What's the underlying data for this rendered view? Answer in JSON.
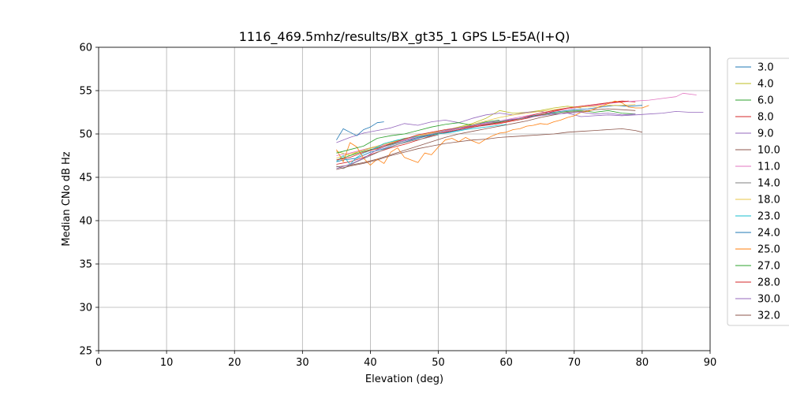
{
  "chart_data": {
    "type": "line",
    "title": "1116_469.5mhz/results/BX_gt35_1 GPS L5-E5A(I+Q)",
    "xlabel": "Elevation (deg)",
    "ylabel": "Median CNo dB Hz",
    "xlim": [
      0,
      90
    ],
    "ylim": [
      25,
      60
    ],
    "xticks": [
      0,
      10,
      20,
      30,
      40,
      50,
      60,
      70,
      80,
      90
    ],
    "yticks": [
      25,
      30,
      35,
      40,
      45,
      50,
      55,
      60
    ],
    "grid": true,
    "legend_position": "right",
    "series": [
      {
        "name": "3.0",
        "color": "#1f77b4",
        "x": [
          35,
          36,
          38,
          40,
          42,
          44,
          46,
          48,
          50,
          52,
          54,
          56,
          58,
          60,
          62,
          64,
          66,
          68,
          70,
          72,
          74,
          76,
          78,
          80
        ],
        "y": [
          46.8,
          47.0,
          47.2,
          47.9,
          48.3,
          48.8,
          49.3,
          49.7,
          50.0,
          50.3,
          50.6,
          50.9,
          51.2,
          51.5,
          51.8,
          52.1,
          52.4,
          52.6,
          52.8,
          52.9,
          53.1,
          53.3,
          53.2,
          53.3
        ]
      },
      {
        "name": "4.0",
        "color": "#bcbd22",
        "x": [
          35,
          37,
          39,
          41,
          43,
          45,
          47,
          49,
          51,
          53,
          55,
          57,
          59,
          61,
          63,
          65,
          67,
          69,
          71
        ],
        "y": [
          48.0,
          47.5,
          48.2,
          48.6,
          49.0,
          49.5,
          49.7,
          50.1,
          50.4,
          50.8,
          51.2,
          51.8,
          52.7,
          52.4,
          52.5,
          52.7,
          53.0,
          53.2,
          53.0
        ]
      },
      {
        "name": "6.0",
        "color": "#2ca02c",
        "x": [
          35,
          37,
          39,
          41,
          43,
          45,
          47,
          49,
          51,
          53,
          55,
          57,
          59,
          61,
          63,
          65,
          67,
          69,
          71,
          73,
          75,
          77,
          79
        ],
        "y": [
          47.0,
          47.5,
          48.0,
          48.4,
          48.8,
          49.2,
          49.6,
          49.9,
          50.3,
          50.6,
          50.9,
          51.2,
          51.4,
          51.6,
          51.9,
          52.2,
          52.4,
          52.6,
          52.7,
          52.5,
          52.7,
          52.4,
          52.3
        ]
      },
      {
        "name": "8.0",
        "color": "#d62728",
        "x": [
          35,
          37,
          39,
          41,
          43,
          45,
          47,
          49,
          51,
          53,
          55,
          57,
          59,
          61,
          63,
          65,
          67,
          69,
          71,
          73,
          75,
          77,
          79
        ],
        "y": [
          46.5,
          46.8,
          47.3,
          47.9,
          48.4,
          48.8,
          49.3,
          49.8,
          50.2,
          50.5,
          50.8,
          51.0,
          51.2,
          51.5,
          51.8,
          52.2,
          52.6,
          52.9,
          53.1,
          53.3,
          53.6,
          53.8,
          53.7
        ]
      },
      {
        "name": "9.0",
        "color": "#9467bd",
        "x": [
          35,
          37,
          39,
          41,
          43,
          45,
          47,
          49,
          51,
          53,
          55,
          57,
          59,
          61,
          63,
          65,
          67,
          69,
          71,
          73,
          75,
          77,
          79,
          81,
          83,
          85,
          87,
          89
        ],
        "y": [
          49.0,
          49.6,
          50.1,
          50.4,
          50.7,
          51.2,
          51.0,
          51.4,
          51.6,
          51.3,
          51.8,
          52.2,
          52.4,
          52.2,
          52.5,
          52.6,
          52.3,
          52.4,
          52.0,
          52.1,
          52.2,
          52.1,
          52.2,
          52.3,
          52.4,
          52.6,
          52.5,
          52.5
        ]
      },
      {
        "name": "10.0",
        "color": "#8c564b",
        "x": [
          35,
          37,
          39,
          41,
          43,
          45,
          47,
          49,
          51,
          53,
          55,
          57,
          59,
          61,
          63,
          65,
          67,
          69,
          71,
          73,
          75,
          77,
          79
        ],
        "y": [
          46.2,
          46.4,
          46.7,
          47.1,
          47.6,
          48.1,
          48.6,
          49.1,
          49.6,
          50.0,
          50.3,
          50.6,
          50.9,
          51.2,
          51.5,
          51.9,
          52.2,
          52.5,
          52.6,
          52.8,
          52.9,
          52.8,
          52.7
        ]
      },
      {
        "name": "11.0",
        "color": "#e377c2",
        "x": [
          35,
          37,
          39,
          41,
          43,
          45,
          47,
          49,
          51,
          53,
          55,
          57,
          59,
          61,
          63,
          65,
          67,
          69,
          71,
          73,
          75,
          77,
          79,
          81,
          83,
          85,
          86,
          88
        ],
        "y": [
          47.5,
          47.8,
          48.2,
          48.5,
          48.9,
          49.3,
          49.7,
          50.0,
          50.3,
          50.6,
          50.9,
          51.2,
          51.5,
          51.8,
          52.1,
          52.4,
          52.7,
          52.9,
          53.1,
          53.3,
          53.5,
          53.7,
          53.8,
          53.9,
          54.1,
          54.3,
          54.7,
          54.5
        ]
      },
      {
        "name": "14.0",
        "color": "#7f7f7f",
        "x": [
          35,
          36,
          38,
          40,
          42,
          44,
          46,
          48,
          50
        ],
        "y": [
          46.3,
          46.0,
          46.8,
          47.5,
          48.2,
          48.8,
          49.2,
          49.5,
          49.9
        ]
      },
      {
        "name": "18.0",
        "color": "#e8c547",
        "x": [
          35,
          37,
          39,
          41,
          43,
          45,
          47,
          49,
          51,
          53,
          55,
          57,
          59,
          61,
          63,
          65,
          67,
          69,
          71,
          73,
          75,
          77,
          79
        ],
        "y": [
          47.2,
          47.7,
          48.1,
          48.6,
          49.0,
          49.4,
          49.8,
          50.1,
          50.4,
          50.7,
          51.1,
          51.5,
          51.9,
          52.2,
          52.4,
          52.6,
          52.8,
          53.0,
          53.1,
          53.2,
          53.3,
          53.3,
          53.4
        ]
      },
      {
        "name": "23.0",
        "color": "#17becf",
        "x": [
          35,
          36,
          37,
          38,
          39,
          40,
          41,
          42,
          44,
          46,
          48,
          50,
          52,
          54,
          56,
          58,
          60
        ],
        "y": [
          46.8,
          47.5,
          46.5,
          47.3,
          47.8,
          48.1,
          48.5,
          48.9,
          49.3,
          49.6,
          49.8,
          50.0,
          50.2,
          50.5,
          50.7,
          50.9,
          51.1
        ]
      },
      {
        "name": "24.0",
        "color": "#1f77b4",
        "x": [
          35,
          36,
          37,
          38,
          39,
          40,
          41,
          42
        ],
        "y": [
          49.3,
          50.6,
          50.2,
          49.8,
          50.5,
          50.8,
          51.3,
          51.4
        ]
      },
      {
        "name": "25.0",
        "color": "#ff7f0e",
        "x": [
          35,
          36,
          37,
          38,
          39,
          40,
          41,
          42,
          43,
          44,
          45,
          46,
          47,
          48,
          49,
          50,
          51,
          52,
          53,
          54,
          55,
          56,
          57,
          58,
          59,
          60,
          61,
          62,
          63,
          64,
          65,
          66,
          67,
          68,
          69,
          70,
          71,
          72,
          73,
          74,
          75,
          76,
          77,
          78,
          79,
          80,
          81
        ],
        "y": [
          48.2,
          46.8,
          49.0,
          48.5,
          47.2,
          46.4,
          47.1,
          46.6,
          47.9,
          48.4,
          47.3,
          47.0,
          46.7,
          47.8,
          47.6,
          48.5,
          49.3,
          49.5,
          49.1,
          49.6,
          49.2,
          48.9,
          49.4,
          49.8,
          50.1,
          50.2,
          50.5,
          50.6,
          50.9,
          51.0,
          51.2,
          51.1,
          51.4,
          51.6,
          51.9,
          52.1,
          52.5,
          52.6,
          52.9,
          53.2,
          53.5,
          53.8,
          53.6,
          53.1,
          53.0,
          53.0,
          53.3
        ]
      },
      {
        "name": "27.0",
        "color": "#2ca02c",
        "x": [
          35,
          37,
          39,
          41,
          43,
          45,
          47,
          49,
          51,
          53,
          55,
          57,
          59
        ],
        "y": [
          47.8,
          48.2,
          48.6,
          49.5,
          49.8,
          50.0,
          50.4,
          50.8,
          51.1,
          51.3,
          51.0,
          51.4,
          51.6
        ]
      },
      {
        "name": "28.0",
        "color": "#d62728",
        "x": [
          35,
          37,
          39,
          41,
          43,
          45,
          47,
          49,
          51,
          53,
          55,
          57,
          59,
          61,
          63,
          65,
          67,
          69,
          71,
          73,
          75,
          77,
          78
        ],
        "y": [
          47.0,
          47.3,
          47.9,
          48.3,
          48.9,
          49.4,
          49.9,
          50.2,
          50.5,
          50.7,
          50.9,
          51.1,
          51.3,
          51.6,
          52.0,
          52.4,
          52.7,
          53.0,
          53.2,
          53.4,
          53.6,
          53.7,
          53.8
        ]
      },
      {
        "name": "30.0",
        "color": "#9467bd",
        "x": [
          35,
          37,
          39,
          41,
          43,
          45,
          47,
          49,
          51,
          53,
          55,
          57,
          59,
          61,
          63,
          65,
          67,
          69,
          71,
          73,
          75,
          77,
          79
        ],
        "y": [
          46.0,
          46.5,
          47.2,
          48.2,
          48.7,
          49.2,
          49.6,
          50.0,
          50.4,
          50.7,
          51.0,
          51.3,
          51.5,
          51.7,
          51.9,
          52.1,
          52.3,
          52.4,
          52.5,
          52.3,
          52.4,
          52.2,
          52.3
        ]
      },
      {
        "name": "32.0",
        "color": "#8c564b",
        "x": [
          35,
          37,
          39,
          41,
          43,
          45,
          47,
          49,
          51,
          53,
          55,
          57,
          59,
          61,
          63,
          65,
          67,
          69,
          71,
          73,
          75,
          77,
          79,
          80
        ],
        "y": [
          45.9,
          46.3,
          46.6,
          47.0,
          47.5,
          47.9,
          48.3,
          48.6,
          48.9,
          49.1,
          49.3,
          49.4,
          49.6,
          49.7,
          49.8,
          49.9,
          50.0,
          50.2,
          50.3,
          50.4,
          50.5,
          50.6,
          50.4,
          50.2
        ]
      }
    ]
  }
}
